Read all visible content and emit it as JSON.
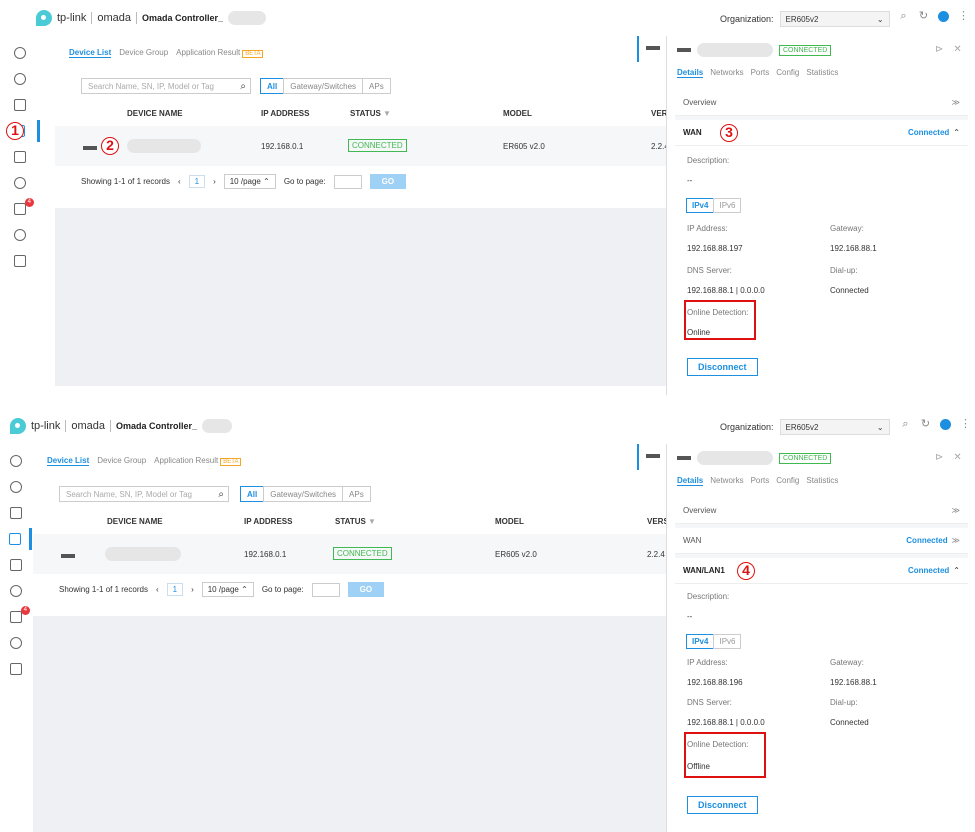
{
  "header": {
    "brand": "tp-link",
    "product": "omada",
    "controller": "Omada Controller_",
    "org_label": "Organization:",
    "org_value": "ER605v2"
  },
  "sidebar": {
    "alert_count": "4"
  },
  "device_tabs": [
    "Device List",
    "Device Group",
    "Application Result"
  ],
  "beta": "BETA",
  "search_placeholder": "Search Name, SN, IP, Model or Tag",
  "filters": [
    "All",
    "Gateway/Switches",
    "APs"
  ],
  "columns": [
    "DEVICE NAME",
    "IP ADDRESS",
    "STATUS",
    "MODEL",
    "VERS"
  ],
  "row": {
    "ip": "192.168.0.1",
    "status": "CONNECTED",
    "model": "ER605 v2.0",
    "version": "2.2.4"
  },
  "pager": {
    "showing": "Showing 1-1 of 1 records",
    "page": "1",
    "per_page": "10 /page",
    "goto": "Go to page:",
    "go": "GO"
  },
  "panel": {
    "status": "CONNECTED",
    "tabs": [
      "Details",
      "Networks",
      "Ports",
      "Config",
      "Statistics"
    ],
    "overview": "Overview",
    "connected": "Connected",
    "description": "Description:",
    "dash": "--",
    "ipv4": "IPv4",
    "ipv6": "IPv6",
    "ip_label": "IP Address:",
    "gw_label": "Gateway:",
    "dns_label": "DNS Server:",
    "dial_label": "Dial-up:",
    "dial_value": "Connected",
    "online_label": "Online Detection:",
    "disconnect": "Disconnect"
  },
  "top": {
    "section": "WAN",
    "ip": "192.168.88.197",
    "gateway": "192.168.88.1",
    "dns": "192.168.88.1 | 0.0.0.0",
    "online": "Online"
  },
  "bottom": {
    "wan": "WAN",
    "section": "WAN/LAN1",
    "ip": "192.168.88.196",
    "gateway": "192.168.88.1",
    "dns": "192.168.88.1 | 0.0.0.0",
    "online": "Offline"
  },
  "callouts": [
    "1",
    "2",
    "3",
    "4"
  ],
  "colors": {
    "accent": "#1c8fe0",
    "ok": "#3fb950",
    "callout": "#dd1111"
  }
}
